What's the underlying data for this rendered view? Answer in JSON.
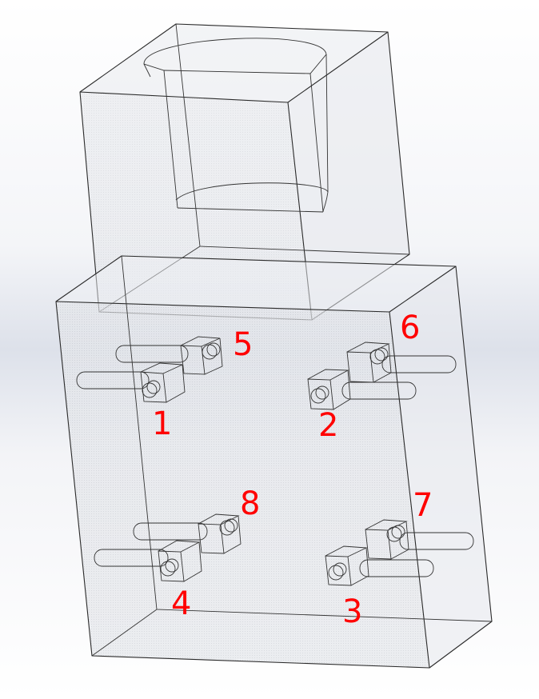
{
  "figure": {
    "label_color": "#ff0000",
    "edge_color": "#2a2a2a",
    "face_fill": "#d8dce2",
    "labels": [
      "1",
      "2",
      "3",
      "4",
      "5",
      "6",
      "7",
      "8"
    ]
  }
}
